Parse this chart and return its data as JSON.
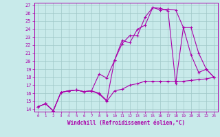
{
  "xlabel": "Windchill (Refroidissement éolien,°C)",
  "xlim": [
    -0.5,
    23.5
  ],
  "ylim": [
    13.7,
    27.3
  ],
  "xticks": [
    0,
    1,
    2,
    3,
    4,
    5,
    6,
    7,
    8,
    9,
    10,
    11,
    12,
    13,
    14,
    15,
    16,
    17,
    18,
    19,
    20,
    21,
    22,
    23
  ],
  "yticks": [
    14,
    15,
    16,
    17,
    18,
    19,
    20,
    21,
    22,
    23,
    24,
    25,
    26,
    27
  ],
  "line_color": "#aa00aa",
  "bg_color": "#c8eaea",
  "grid_color": "#a0c8c8",
  "line1_x": [
    0,
    1,
    2,
    3,
    4,
    5,
    6,
    7,
    8,
    9,
    10,
    11,
    12,
    13,
    14,
    15,
    16,
    17,
    18,
    19,
    20,
    21,
    22,
    23
  ],
  "line1_y": [
    14.3,
    14.7,
    13.8,
    16.1,
    16.3,
    16.4,
    16.2,
    16.3,
    16.0,
    15.1,
    20.1,
    22.6,
    22.3,
    24.0,
    24.5,
    26.7,
    26.6,
    26.3,
    17.2,
    24.2,
    20.8,
    18.6,
    19.0,
    18.0
  ],
  "line2_x": [
    0,
    1,
    2,
    3,
    4,
    5,
    6,
    7,
    8,
    9,
    10,
    11,
    12,
    13,
    14,
    15,
    16,
    17,
    18,
    19,
    20,
    21,
    22,
    23
  ],
  "line2_y": [
    14.3,
    14.7,
    13.8,
    16.1,
    16.3,
    16.4,
    16.2,
    16.3,
    15.9,
    15.0,
    16.3,
    16.5,
    17.0,
    17.2,
    17.5,
    17.5,
    17.5,
    17.5,
    17.5,
    17.5,
    17.6,
    17.7,
    17.8,
    18.0
  ],
  "line3_x": [
    0,
    1,
    2,
    3,
    4,
    5,
    6,
    7,
    8,
    9,
    10,
    11,
    12,
    13,
    14,
    15,
    16,
    17,
    18,
    19,
    20,
    21,
    22,
    23
  ],
  "line3_y": [
    14.3,
    14.7,
    13.8,
    16.1,
    16.3,
    16.4,
    16.2,
    16.3,
    18.4,
    17.9,
    20.1,
    22.2,
    23.2,
    23.2,
    25.5,
    26.7,
    26.4,
    26.5,
    26.4,
    24.2,
    24.2,
    21.0,
    19.0,
    18.0
  ]
}
